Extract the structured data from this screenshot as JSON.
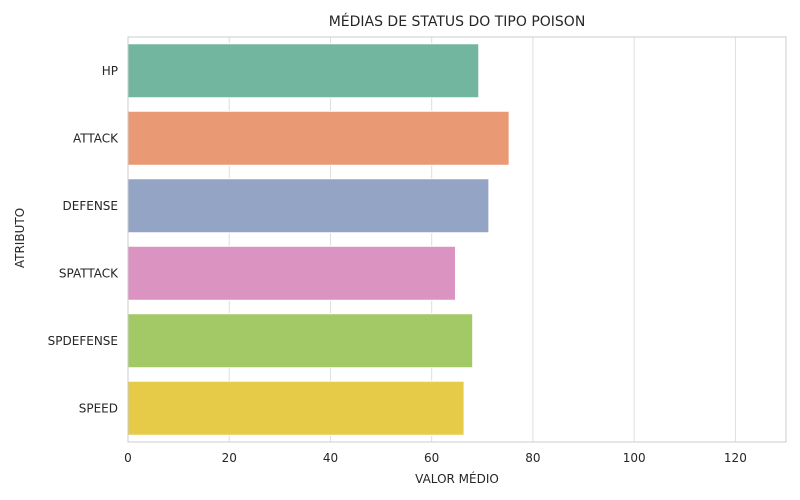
{
  "chart_data": {
    "type": "bar",
    "orientation": "horizontal",
    "title": "MÉDIAS DE STATUS DO TIPO POISON",
    "xlabel": "VALOR MÉDIO",
    "ylabel": "ATRIBUTO",
    "categories": [
      "HP",
      "ATTACK",
      "DEFENSE",
      "SPATTACK",
      "SPDEFENSE",
      "SPEED"
    ],
    "values": [
      69.3,
      75.3,
      71.3,
      64.7,
      68.1,
      66.4
    ],
    "colors": [
      "#72b6a0",
      "#e99974",
      "#94a4c5",
      "#db94c2",
      "#a3c967",
      "#e5cb48"
    ],
    "xlim": [
      0,
      130
    ],
    "xticks": [
      0,
      20,
      40,
      60,
      80,
      100,
      120
    ],
    "grid": true
  }
}
